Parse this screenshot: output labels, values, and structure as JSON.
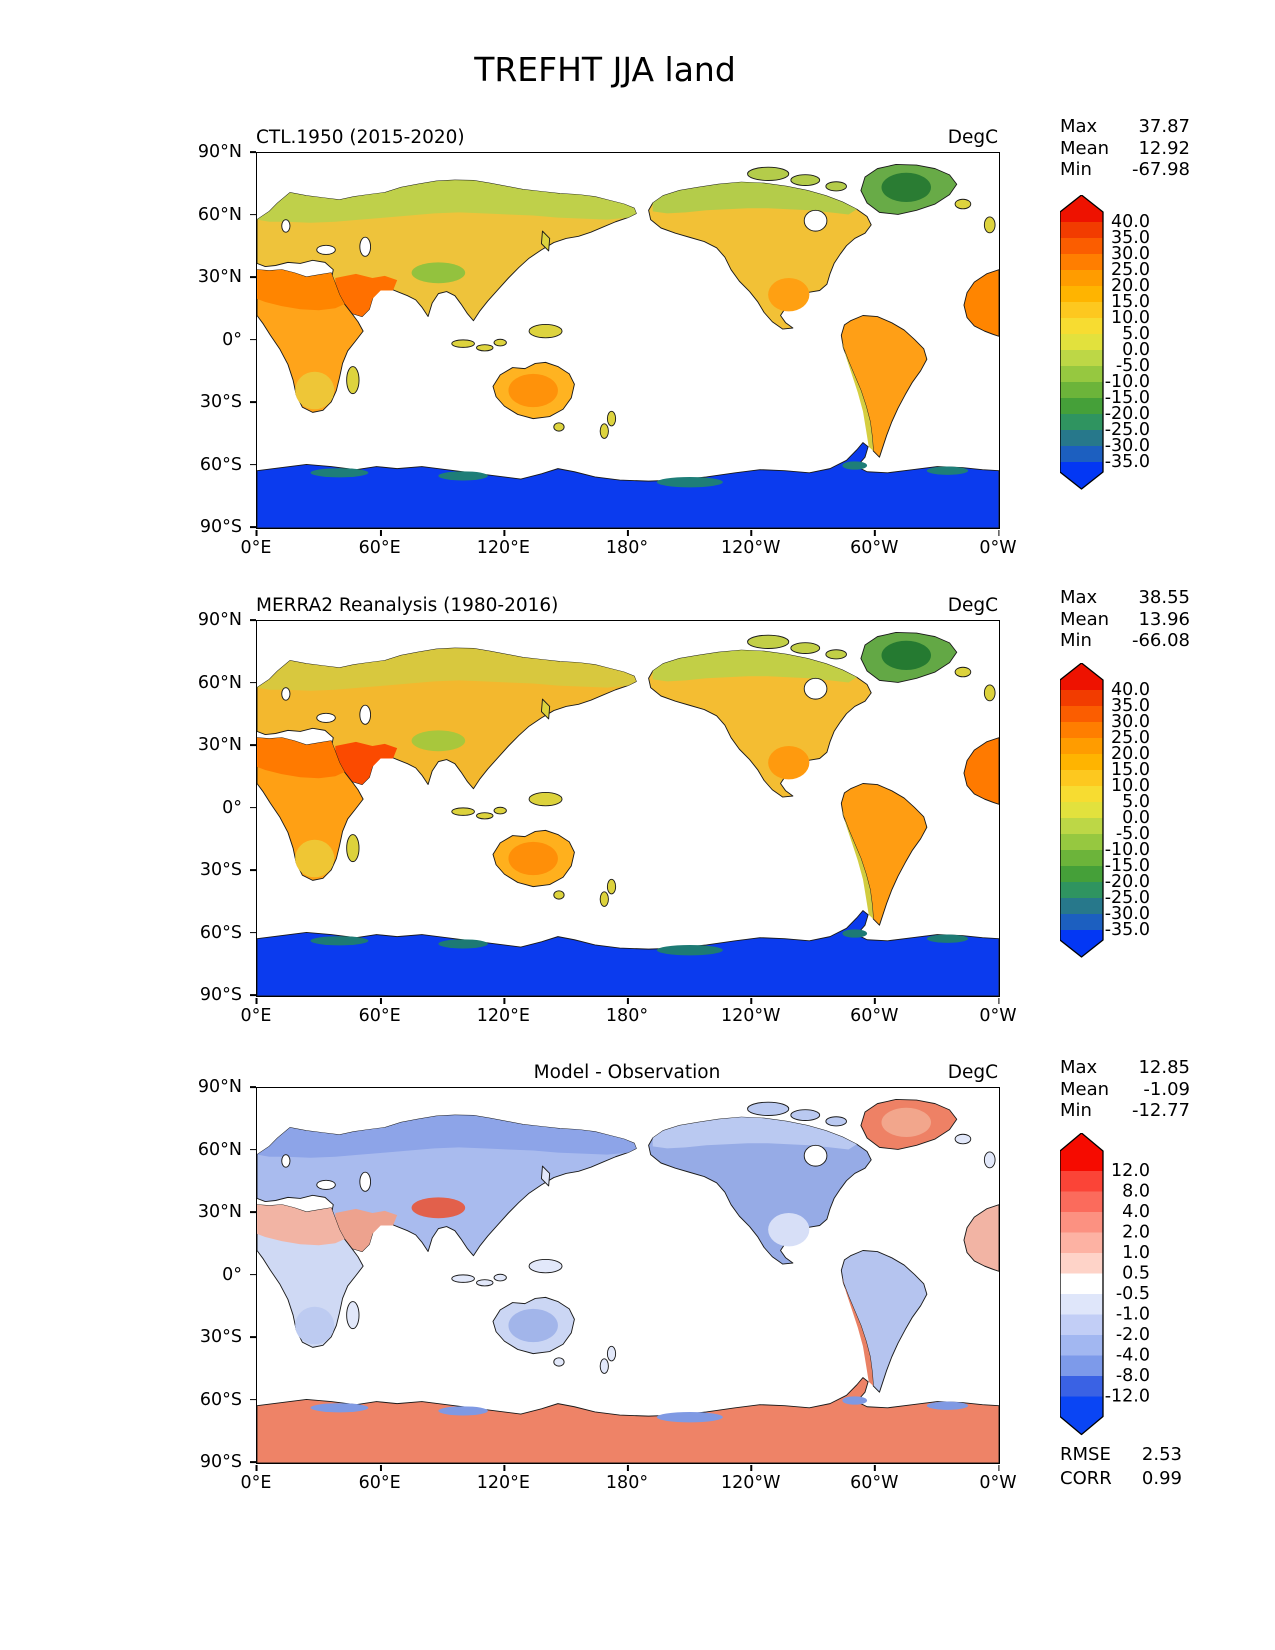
{
  "title": "TREFHT JJA land",
  "axes": {
    "x_ticks": [
      "0°E",
      "60°E",
      "120°E",
      "180°",
      "120°W",
      "60°W",
      "0°W"
    ],
    "y_ticks": [
      "90°N",
      "60°N",
      "30°N",
      "0°",
      "30°S",
      "60°S",
      "90°S"
    ]
  },
  "panels": [
    {
      "title": "CTL.1950 (2015-2020)",
      "units": "DegC",
      "stats": [
        {
          "label": "Max",
          "value": "37.87"
        },
        {
          "label": "Mean",
          "value": "12.92"
        },
        {
          "label": "Min",
          "value": "-67.98"
        }
      ],
      "colorbar": {
        "ticks": [
          "40.0",
          "35.0",
          "30.0",
          "25.0",
          "20.0",
          "15.0",
          "10.0",
          "5.0",
          "0.0",
          "-5.0",
          "-10.0",
          "-15.0",
          "-20.0",
          "-25.0",
          "-30.0",
          "-35.0"
        ],
        "colors": [
          "#f23c00",
          "#fb5d00",
          "#ff7e00",
          "#ff9c00",
          "#ffb400",
          "#fdc81f",
          "#f7dc31",
          "#e2e13d",
          "#bdd746",
          "#96c840",
          "#6cb43a",
          "#45a039",
          "#2f9460",
          "#27788b",
          "#1c5fc0"
        ],
        "arrow_top": "#ee1200",
        "arrow_bottom": "#0337f4"
      },
      "map_style": "--eurasia:#eec33b;--siberia:#bfd04a;--tibet:#93c23e;--arabia:#ff7000;--africa:#ffa41a;--africa-n:#ff8500;--africa-s:#eec637;--greenland:#68ab47;--greenland-core:#2a7c33;--namerica:#f2c136;--namerica-n:#b4cc4a;--namerica-s:#ffa012;--samerica:#ff9f16;--andes:#d6ce40;--australia:#ffb321;--australia-core:#ff920a;--antarctica:#0b3bee;--antarctica-coast:#1e7e78;--islands:#ddd33e"
    },
    {
      "title": "MERRA2 Reanalysis (1980-2016)",
      "units": "DegC",
      "stats": [
        {
          "label": "Max",
          "value": "38.55"
        },
        {
          "label": "Mean",
          "value": "13.96"
        },
        {
          "label": "Min",
          "value": "-66.08"
        }
      ],
      "colorbar": {
        "ticks": [
          "40.0",
          "35.0",
          "30.0",
          "25.0",
          "20.0",
          "15.0",
          "10.0",
          "5.0",
          "0.0",
          "-5.0",
          "-10.0",
          "-15.0",
          "-20.0",
          "-25.0",
          "-30.0",
          "-35.0"
        ],
        "colors": [
          "#f23c00",
          "#fb5d00",
          "#ff7e00",
          "#ff9c00",
          "#ffb400",
          "#fdc81f",
          "#f7dc31",
          "#e2e13d",
          "#bdd746",
          "#96c840",
          "#6cb43a",
          "#45a039",
          "#2f9460",
          "#27788b",
          "#1c5fc0"
        ],
        "arrow_top": "#ee1200",
        "arrow_bottom": "#0337f4"
      },
      "map_style": "--eurasia:#f3b82e;--siberia:#d8c83e;--tibet:#a8c73c;--arabia:#fb4a00;--africa:#ffa014;--africa-n:#ff7a00;--africa-s:#efc634;--greenland:#63a845;--greenland-core:#257a31;--namerica:#f4bd32;--namerica-n:#c2cf46;--namerica-s:#ff9a0e;--samerica:#ff9d12;--andes:#d2cc3f;--australia:#ffb01d;--australia-core:#ff8f08;--antarctica:#0b3bee;--antarctica-coast:#1d7a74;--islands:#dcd23c"
    },
    {
      "title": "Model - Observation",
      "units": "DegC",
      "stats": [
        {
          "label": "Max",
          "value": "12.85"
        },
        {
          "label": "Mean",
          "value": "-1.09"
        },
        {
          "label": "Min",
          "value": "-12.77"
        }
      ],
      "colorbar": {
        "ticks": [
          "12.0",
          "8.0",
          "4.0",
          "2.0",
          "1.0",
          "0.5",
          "-0.5",
          "-1.0",
          "-2.0",
          "-4.0",
          "-8.0",
          "-12.0"
        ],
        "colors": [
          "#fb4437",
          "#fb6b5c",
          "#fc9181",
          "#fdb2a3",
          "#fed3c8",
          "#ffffff",
          "#dfe6fa",
          "#c2cef6",
          "#a2b7f1",
          "#7d9aea",
          "#3a62e4"
        ],
        "arrow_top": "#f60b00",
        "arrow_bottom": "#0a45f4"
      },
      "map_style": "--eurasia:#a9bbee;--siberia:#8da4e8;--tibet:#e2604b;--arabia:#eda28e;--africa:#cfd9f4;--africa-n:#f2b4a4;--africa-s:#bdcbf1;--greenland:#ee8165;--greenland-core:#f2a68c;--namerica:#96abe6;--namerica-n:#bac9f1;--namerica-s:#d7dff7;--samerica:#b5c4ef;--andes:#e98165;--australia:#cbd6f4;--australia-core:#a2b5ea;--antarctica:#ee8367;--antarctica-coast:#7f99e3;--islands:#e2e8fa"
    }
  ],
  "footer_stats": [
    {
      "label": "RMSE",
      "value": "2.53"
    },
    {
      "label": "CORR",
      "value": "0.99"
    }
  ],
  "chart_data": {
    "type": "heatmap",
    "figure_title": "TREFHT JJA land",
    "variable": "TREFHT",
    "season": "JJA",
    "region": "land",
    "units": "DegC",
    "projection": "equirectangular, longitude 0°E to 0°W (0-360), latitude 90°N to 90°S",
    "x_tick_labels": [
      "0°E",
      "60°E",
      "120°E",
      "180°",
      "120°W",
      "60°W",
      "0°W"
    ],
    "y_tick_labels": [
      "90°N",
      "60°N",
      "30°N",
      "0°",
      "30°S",
      "60°S",
      "90°S"
    ],
    "panels": [
      {
        "title": "CTL.1950 (2015-2020)",
        "role": "model",
        "stats": {
          "max": 37.87,
          "mean": 12.92,
          "min": -67.98
        },
        "colorbar_ticks": [
          40.0,
          35.0,
          30.0,
          25.0,
          20.0,
          15.0,
          10.0,
          5.0,
          0.0,
          -5.0,
          -10.0,
          -15.0,
          -20.0,
          -25.0,
          -30.0,
          -35.0
        ],
        "colorbar_extend": "both"
      },
      {
        "title": "MERRA2 Reanalysis (1980-2016)",
        "role": "observation",
        "stats": {
          "max": 38.55,
          "mean": 13.96,
          "min": -66.08
        },
        "colorbar_ticks": [
          40.0,
          35.0,
          30.0,
          25.0,
          20.0,
          15.0,
          10.0,
          5.0,
          0.0,
          -5.0,
          -10.0,
          -15.0,
          -20.0,
          -25.0,
          -30.0,
          -35.0
        ],
        "colorbar_extend": "both"
      },
      {
        "title": "Model - Observation",
        "role": "difference",
        "stats": {
          "max": 12.85,
          "mean": -1.09,
          "min": -12.77
        },
        "colorbar_ticks": [
          12.0,
          8.0,
          4.0,
          2.0,
          1.0,
          0.5,
          -0.5,
          -1.0,
          -2.0,
          -4.0,
          -8.0,
          -12.0
        ],
        "colorbar_extend": "both",
        "rmse": 2.53,
        "corr": 0.99
      }
    ]
  }
}
